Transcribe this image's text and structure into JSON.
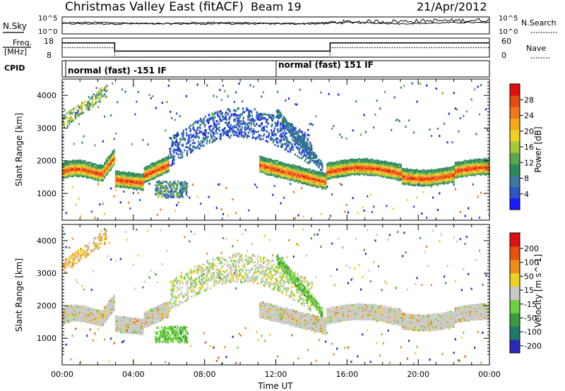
{
  "header": {
    "title": "Christmas Valley East (fitACF)",
    "beam": "Beam 19",
    "date": "21/Apr/2012"
  },
  "noise_panel": {
    "left_label": "N.Sky",
    "right_label": "N.Search",
    "tick_top": "10^5",
    "tick_bottom": "10^0"
  },
  "freq_panel": {
    "left_label_1": "Freq.",
    "left_label_2": "[MHz]",
    "right_label": "Nave",
    "left_tick_top": "18",
    "left_tick_bottom": "8",
    "right_tick_top": "60",
    "right_tick_bottom": "0"
  },
  "cpid_panel": {
    "label": "CPID",
    "mode_1": "normal (fast) -151 IF",
    "mode_2": "normal (fast) 151 IF"
  },
  "power_panel": {
    "ylabel": "Slant Range [km]",
    "yticks": [
      "1000",
      "2000",
      "3000",
      "4000"
    ],
    "colorbar_label": "Power [dB]",
    "colorbar_ticks": [
      "4",
      "8",
      "12",
      "16",
      "20",
      "24",
      "28"
    ],
    "colors": [
      "#1a1aff",
      "#2d55c8",
      "#3a78a0",
      "#2f8a5a",
      "#5aa850",
      "#a8c83a",
      "#f0d020",
      "#f7a81a",
      "#f07818",
      "#e84a14",
      "#e01010"
    ]
  },
  "velocity_panel": {
    "ylabel": "Slant Range [km]",
    "yticks": [
      "1000",
      "2000",
      "3000",
      "4000"
    ],
    "colorbar_label": "Velocity [m s^-1]",
    "colorbar_ticks": [
      "200",
      "100",
      "50",
      "15",
      "-15",
      "-50",
      "-100",
      "-200"
    ],
    "colors": [
      "#2a2ab8",
      "#1d7a6a",
      "#3a9a3a",
      "#70d040",
      "#c8c8c8",
      "#f0d020",
      "#f08a18",
      "#e85010",
      "#e01010"
    ]
  },
  "time_axis": {
    "ticks": [
      "00:00",
      "04:00",
      "08:00",
      "12:00",
      "16:00",
      "20:00",
      "00:00"
    ],
    "xlabel": "Time UT"
  },
  "chart_data": [
    {
      "type": "line",
      "title": "Christmas Valley East (fitACF) Beam 19",
      "x": [
        0,
        3,
        6,
        9,
        12,
        15,
        18,
        21,
        24
      ],
      "series": [
        {
          "name": "N.Sky",
          "values": [
            3.2,
            3.4,
            3.3,
            3.1,
            3.0,
            3.2,
            3.3,
            3.4,
            3.6
          ]
        },
        {
          "name": "N.Search",
          "values": [
            3.0,
            3.1,
            3.0,
            2.9,
            2.9,
            3.2,
            3.4,
            3.6,
            3.8
          ]
        }
      ],
      "ylim": [
        0,
        5
      ],
      "xlim": [
        0,
        24
      ]
    },
    {
      "type": "line",
      "x": [
        0,
        2.95,
        2.95,
        15.05,
        15.05,
        24
      ],
      "series": [
        {
          "name": "Freq.",
          "values": [
            15.5,
            15.5,
            11.2,
            11.2,
            15.5,
            15.5
          ]
        },
        {
          "name": "Nave",
          "values": [
            13,
            13,
            8,
            8,
            13,
            13
          ]
        }
      ],
      "ylim": [
        8,
        18
      ],
      "y2lim": [
        0,
        60
      ],
      "xlim": [
        0,
        24
      ]
    },
    {
      "type": "heatmap",
      "ylabel": "Slant Range [km]",
      "colorbar": "Power [dB]",
      "xlim": [
        0,
        24
      ],
      "ylim": [
        180,
        4500
      ],
      "clim": [
        0,
        32
      ]
    },
    {
      "type": "heatmap",
      "ylabel": "Slant Range [km]",
      "xlabel": "Time UT",
      "colorbar": "Velocity [m s^-1]",
      "xlim": [
        0,
        24
      ],
      "ylim": [
        180,
        4500
      ],
      "clim": [
        -250,
        250
      ]
    }
  ]
}
